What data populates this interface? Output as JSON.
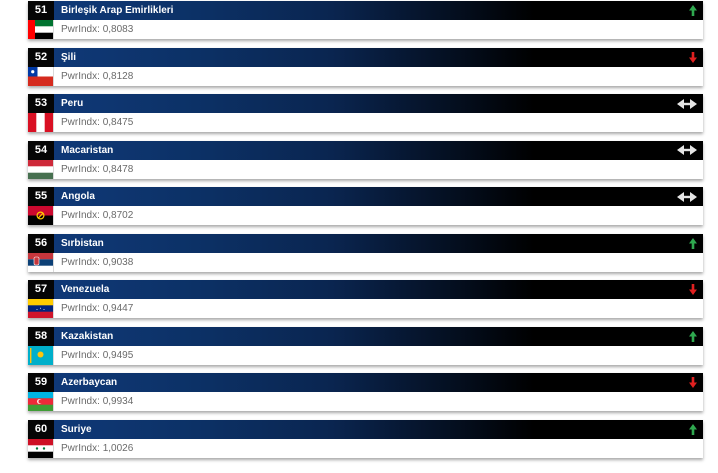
{
  "index_label": "PwrIndx:",
  "colors": {
    "up": "#2fa84f",
    "down": "#e02020",
    "same": "#e5e5e5"
  },
  "rows": [
    {
      "rank": "51",
      "country": "Birleşik Arap Emirlikleri",
      "value": "0,8083",
      "trend": "up",
      "flag": "uae"
    },
    {
      "rank": "52",
      "country": "Şili",
      "value": "0,8128",
      "trend": "down",
      "flag": "chile"
    },
    {
      "rank": "53",
      "country": "Peru",
      "value": "0,8475",
      "trend": "same",
      "flag": "peru"
    },
    {
      "rank": "54",
      "country": "Macaristan",
      "value": "0,8478",
      "trend": "same",
      "flag": "hungary"
    },
    {
      "rank": "55",
      "country": "Angola",
      "value": "0,8702",
      "trend": "same",
      "flag": "angola"
    },
    {
      "rank": "56",
      "country": "Sırbistan",
      "value": "0,9038",
      "trend": "up",
      "flag": "serbia"
    },
    {
      "rank": "57",
      "country": "Venezuela",
      "value": "0,9447",
      "trend": "down",
      "flag": "venezuela"
    },
    {
      "rank": "58",
      "country": "Kazakistan",
      "value": "0,9495",
      "trend": "up",
      "flag": "kazakhstan"
    },
    {
      "rank": "59",
      "country": "Azerbaycan",
      "value": "0,9934",
      "trend": "down",
      "flag": "azerbaijan"
    },
    {
      "rank": "60",
      "country": "Suriye",
      "value": "1,0026",
      "trend": "up",
      "flag": "syria"
    }
  ]
}
